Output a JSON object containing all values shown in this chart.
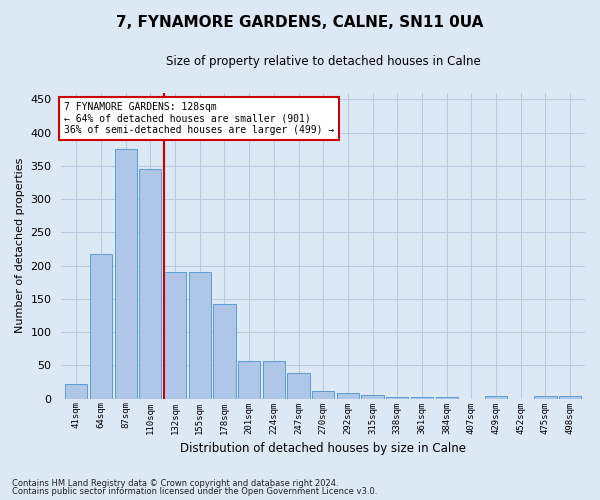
{
  "title": "7, FYNAMORE GARDENS, CALNE, SN11 0UA",
  "subtitle": "Size of property relative to detached houses in Calne",
  "xlabel": "Distribution of detached houses by size in Calne",
  "ylabel": "Number of detached properties",
  "categories": [
    "41sqm",
    "64sqm",
    "87sqm",
    "110sqm",
    "132sqm",
    "155sqm",
    "178sqm",
    "201sqm",
    "224sqm",
    "247sqm",
    "270sqm",
    "292sqm",
    "315sqm",
    "338sqm",
    "361sqm",
    "384sqm",
    "407sqm",
    "429sqm",
    "452sqm",
    "475sqm",
    "498sqm"
  ],
  "values": [
    22,
    217,
    375,
    345,
    190,
    190,
    142,
    56,
    56,
    38,
    11,
    8,
    5,
    2,
    2,
    2,
    0,
    4,
    0,
    4,
    4
  ],
  "bar_color": "#aec6e8",
  "bar_edge_color": "#5b9bd5",
  "annotation_lines": [
    "7 FYNAMORE GARDENS: 128sqm",
    "← 64% of detached houses are smaller (901)",
    "36% of semi-detached houses are larger (499) →"
  ],
  "annotation_box_color": "#ffffff",
  "annotation_box_edge": "#cc0000",
  "redline_color": "#cc0000",
  "footer_line1": "Contains HM Land Registry data © Crown copyright and database right 2024.",
  "footer_line2": "Contains public sector information licensed under the Open Government Licence v3.0.",
  "ylim": [
    0,
    460
  ],
  "background_color": "#dde8f5",
  "grid_color": "#b8c8de",
  "yticks": [
    0,
    50,
    100,
    150,
    200,
    250,
    300,
    350,
    400,
    450
  ]
}
